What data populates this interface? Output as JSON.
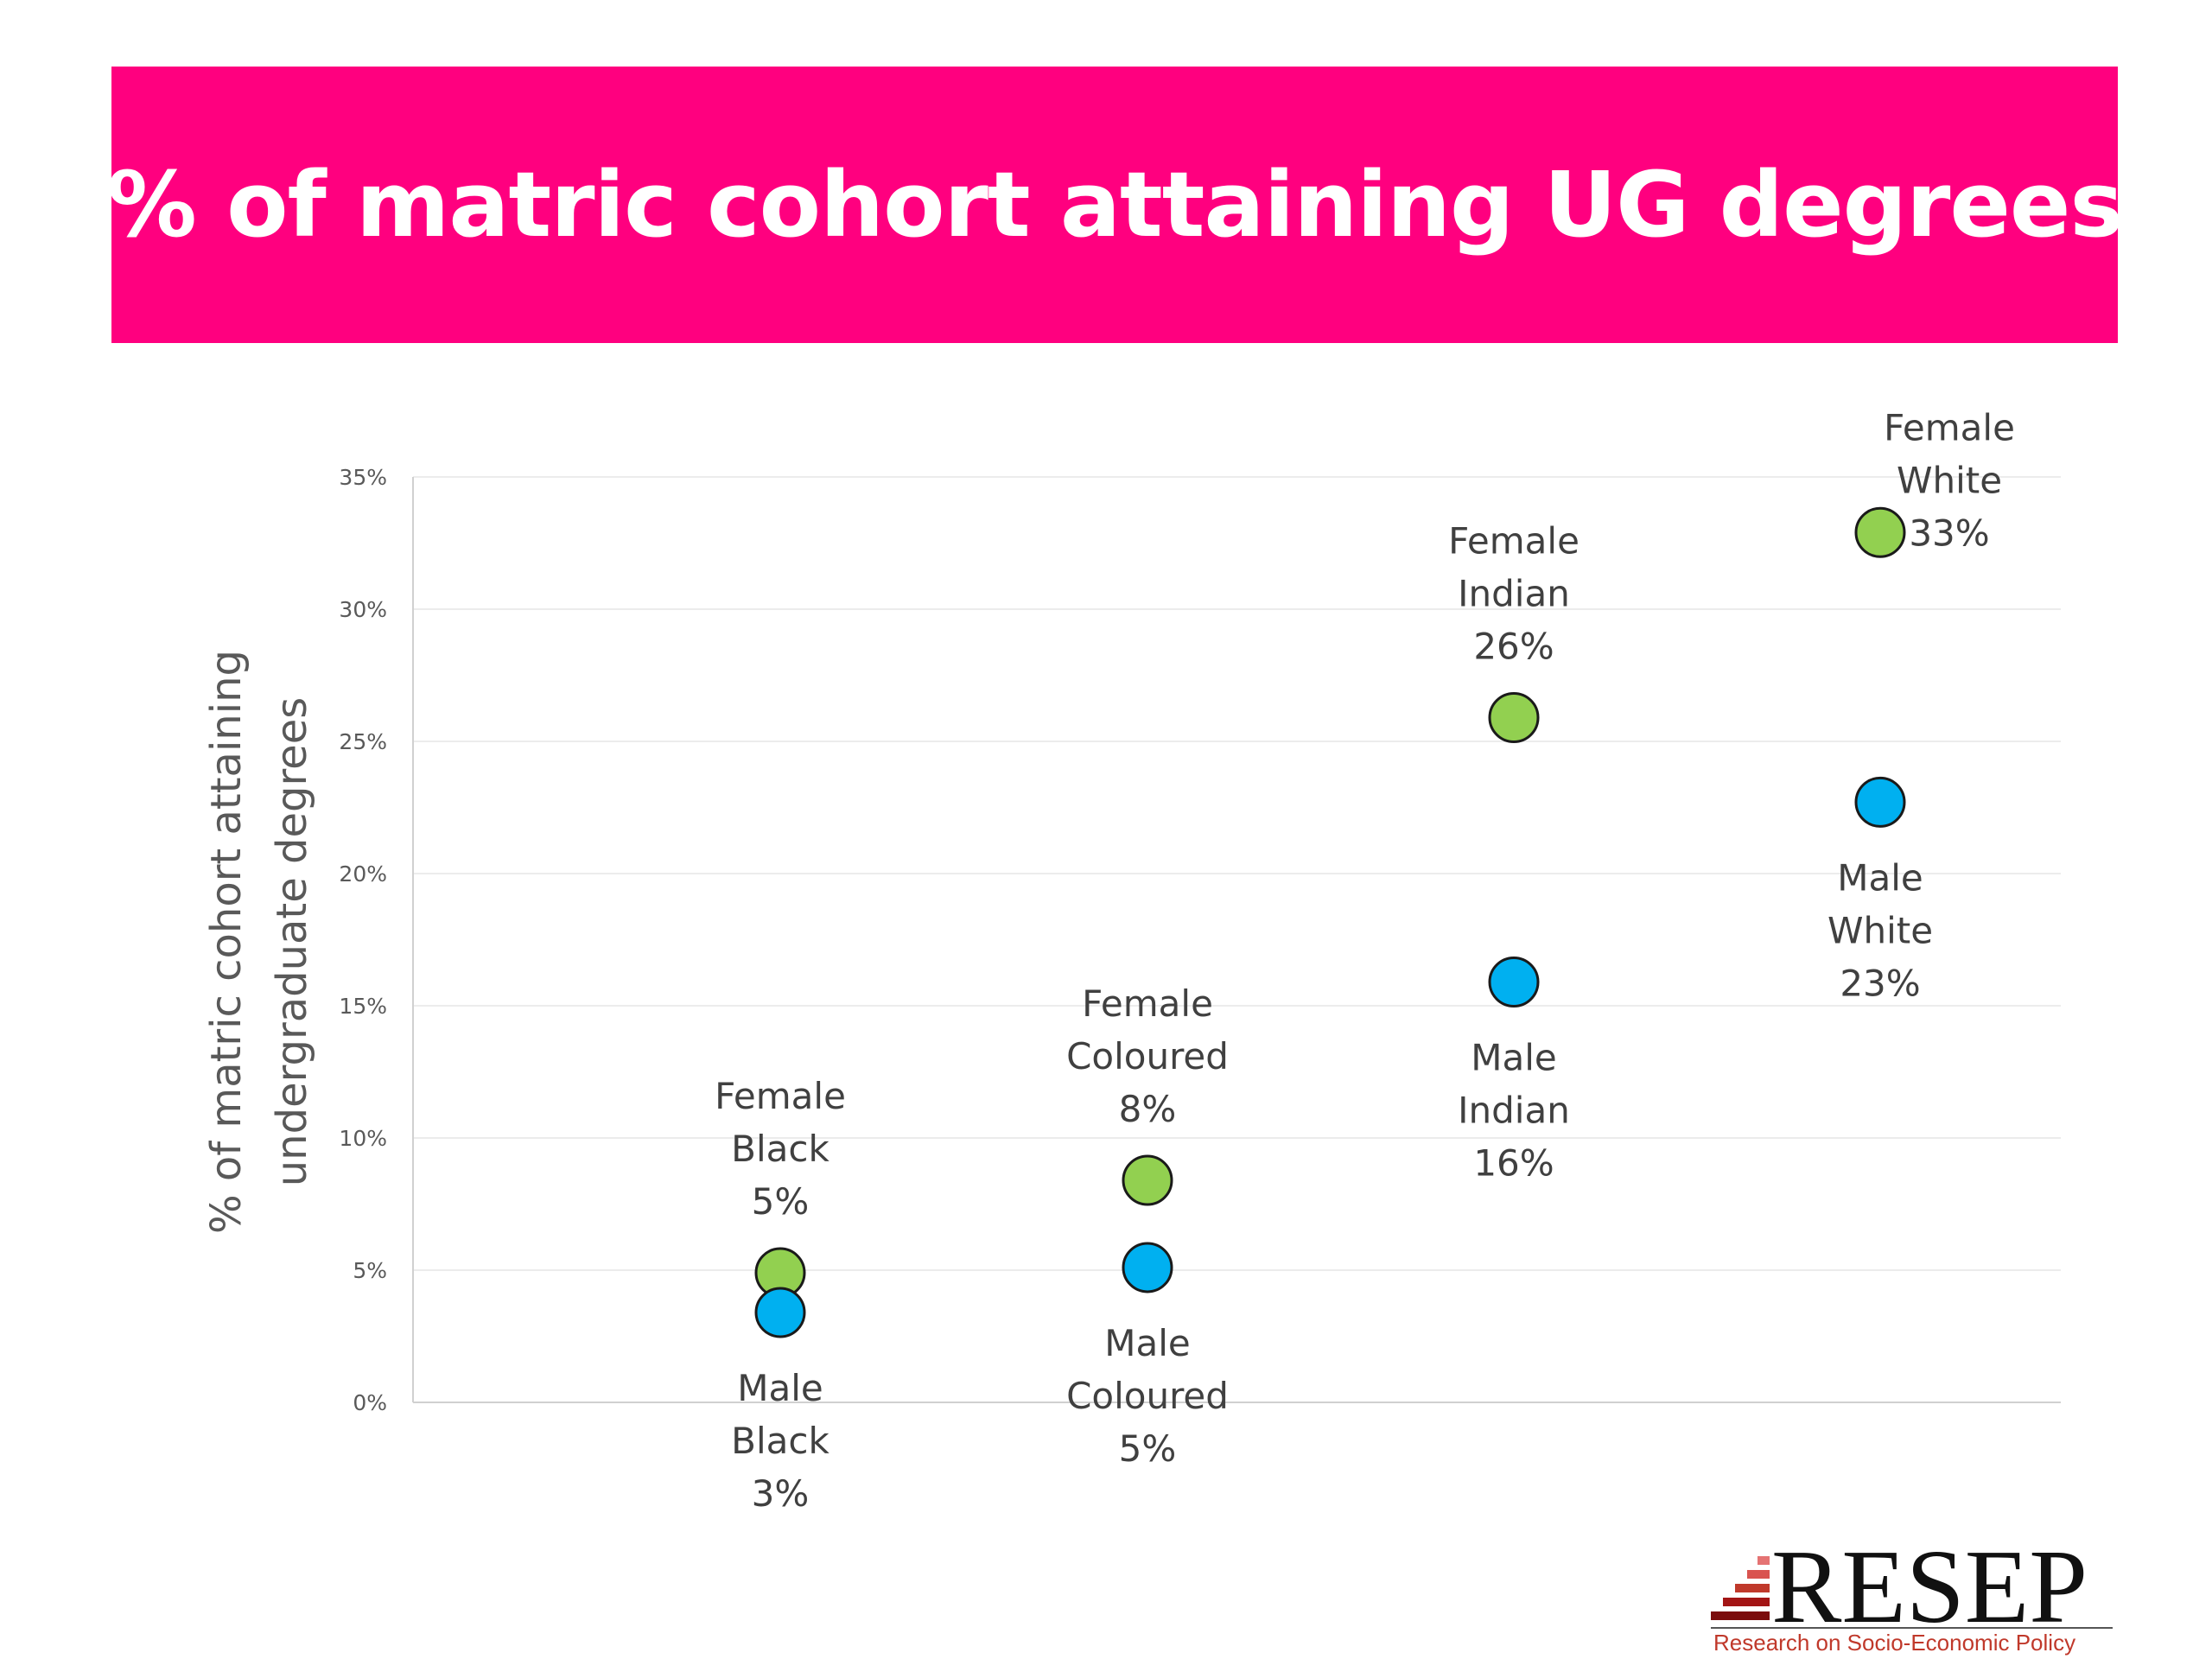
{
  "slide": {
    "title": "% of matric cohort attaining UG degrees",
    "banner_color": "#ff007f"
  },
  "chart_data": {
    "type": "scatter",
    "title": "% of matric cohort attaining UG degrees",
    "ylabel_lines": [
      "% of matric cohort attaining",
      "undergraduate degrees"
    ],
    "xlabel": "",
    "ylim": [
      0,
      35
    ],
    "yticks": [
      0,
      5,
      10,
      15,
      20,
      25,
      30,
      35
    ],
    "ytick_labels": [
      "0%",
      "5%",
      "10%",
      "15%",
      "20%",
      "25%",
      "30%",
      "35%"
    ],
    "grid": true,
    "categories": [
      "Black",
      "Coloured",
      "Indian",
      "White"
    ],
    "series": [
      {
        "color": "#92d050",
        "values": [
          4.9,
          8.4,
          25.9,
          32.9
        ],
        "labels": [
          [
            "Female",
            "Black",
            "5%"
          ],
          [
            "Female",
            "Coloured",
            "8%"
          ],
          [
            "Female",
            "Indian",
            "26%"
          ],
          [
            "Female",
            "White",
            "33%"
          ]
        ],
        "label_positions": [
          "above",
          "above",
          "above",
          "above-right"
        ]
      },
      {
        "color": "#00b0f0",
        "values": [
          3.4,
          5.1,
          15.9,
          22.7
        ],
        "labels": [
          [
            "Male",
            "Black",
            "3%"
          ],
          [
            "Male",
            "Coloured",
            "5%"
          ],
          [
            "Male",
            "Indian",
            "16%"
          ],
          [
            "Male",
            "White",
            "23%"
          ]
        ],
        "label_positions": [
          "below",
          "below",
          "below",
          "below"
        ]
      }
    ]
  },
  "logo": {
    "text": "RESEP",
    "tagline": "Research on Socio-Economic Policy",
    "tagline_color": "#c0392b"
  }
}
